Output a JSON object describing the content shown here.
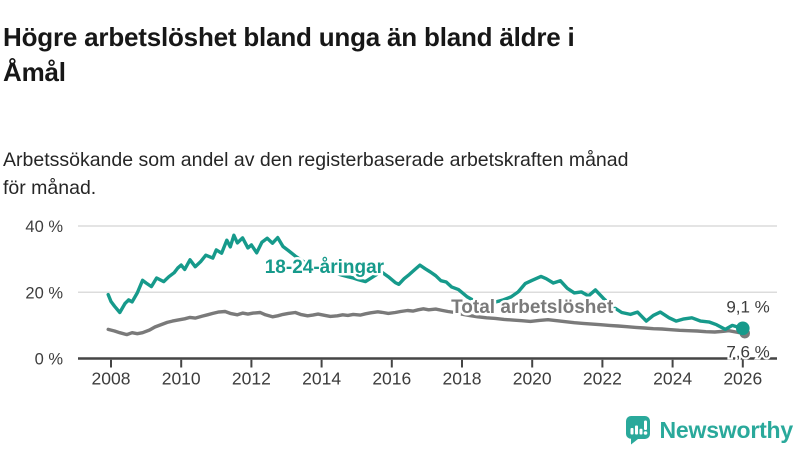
{
  "header": {
    "title": "Högre arbetslöshet bland unga än bland äldre i\nÅmål",
    "subtitle": "Arbetssökande som andel av den registerbaserade arbetskraften månad\nför månad."
  },
  "chart_data": {
    "type": "line",
    "title": "Högre arbetslöshet bland unga än bland äldre i Åmål",
    "subtitle": "Arbetssökande som andel av den registerbaserade arbetskraften månad för månad.",
    "grid": "horizontal",
    "grid_color": "#dcdcdc",
    "axis_color": "#454545",
    "tick_label_color": "#3d3d3d",
    "x_axis": {
      "ticks": [
        2008,
        2010,
        2012,
        2014,
        2016,
        2018,
        2020,
        2022,
        2024,
        2026
      ],
      "range": [
        2007.75,
        2026.95
      ]
    },
    "y_axis": {
      "ticks": [
        {
          "value": 0,
          "label": "0 %"
        },
        {
          "value": 20,
          "label": "20 %"
        },
        {
          "value": 40,
          "label": "40 %"
        }
      ],
      "range": [
        0,
        42
      ]
    },
    "series": [
      {
        "name": "18-24-åringar",
        "color": "#169a8b",
        "end_label": "9,1 %",
        "end_value": 9.1,
        "label_anchor": {
          "x": 2014.08,
          "y": 25.8
        },
        "points": [
          [
            2007.92,
            19.3
          ],
          [
            2008.0,
            17.2
          ],
          [
            2008.1,
            15.8
          ],
          [
            2008.25,
            13.9
          ],
          [
            2008.4,
            16.6
          ],
          [
            2008.5,
            17.7
          ],
          [
            2008.6,
            17.1
          ],
          [
            2008.75,
            19.8
          ],
          [
            2008.9,
            23.6
          ],
          [
            2009.0,
            22.8
          ],
          [
            2009.15,
            21.7
          ],
          [
            2009.3,
            24.3
          ],
          [
            2009.5,
            23.2
          ],
          [
            2009.65,
            24.7
          ],
          [
            2009.8,
            25.9
          ],
          [
            2009.9,
            27.3
          ],
          [
            2010.0,
            28.2
          ],
          [
            2010.1,
            26.9
          ],
          [
            2010.25,
            29.8
          ],
          [
            2010.4,
            27.7
          ],
          [
            2010.55,
            29.2
          ],
          [
            2010.7,
            31.2
          ],
          [
            2010.9,
            30.3
          ],
          [
            2011.0,
            32.8
          ],
          [
            2011.15,
            31.8
          ],
          [
            2011.3,
            35.7
          ],
          [
            2011.4,
            33.7
          ],
          [
            2011.5,
            37.2
          ],
          [
            2011.6,
            34.9
          ],
          [
            2011.75,
            36.4
          ],
          [
            2011.9,
            33.4
          ],
          [
            2012.0,
            34.3
          ],
          [
            2012.15,
            31.9
          ],
          [
            2012.3,
            35.1
          ],
          [
            2012.45,
            36.3
          ],
          [
            2012.6,
            34.8
          ],
          [
            2012.75,
            36.5
          ],
          [
            2012.9,
            33.8
          ],
          [
            2013.05,
            32.6
          ],
          [
            2013.25,
            30.9
          ],
          [
            2013.45,
            29.5
          ],
          [
            2013.6,
            28.4
          ],
          [
            2013.75,
            27.5
          ],
          [
            2013.9,
            26.9
          ],
          [
            2014.05,
            27.3
          ],
          [
            2014.25,
            26.4
          ],
          [
            2014.45,
            25.6
          ],
          [
            2014.6,
            25.1
          ],
          [
            2014.75,
            24.7
          ],
          [
            2014.9,
            24.3
          ],
          [
            2015.05,
            23.8
          ],
          [
            2015.25,
            23.2
          ],
          [
            2015.5,
            24.9
          ],
          [
            2015.7,
            26.2
          ],
          [
            2015.9,
            24.7
          ],
          [
            2016.1,
            22.9
          ],
          [
            2016.2,
            22.4
          ],
          [
            2016.35,
            24.1
          ],
          [
            2016.5,
            25.4
          ],
          [
            2016.65,
            26.8
          ],
          [
            2016.8,
            28.2
          ],
          [
            2016.95,
            27.1
          ],
          [
            2017.1,
            26.1
          ],
          [
            2017.25,
            25.0
          ],
          [
            2017.4,
            23.5
          ],
          [
            2017.55,
            23.1
          ],
          [
            2017.7,
            21.6
          ],
          [
            2017.9,
            20.8
          ],
          [
            2018.15,
            18.6
          ],
          [
            2018.4,
            17.1
          ],
          [
            2018.65,
            16.6
          ],
          [
            2018.9,
            16.9
          ],
          [
            2019.15,
            17.6
          ],
          [
            2019.4,
            18.6
          ],
          [
            2019.6,
            20.1
          ],
          [
            2019.8,
            22.6
          ],
          [
            2020.0,
            23.6
          ],
          [
            2020.25,
            24.8
          ],
          [
            2020.4,
            24.1
          ],
          [
            2020.6,
            22.8
          ],
          [
            2020.8,
            23.5
          ],
          [
            2021.0,
            21.2
          ],
          [
            2021.2,
            19.8
          ],
          [
            2021.4,
            20.1
          ],
          [
            2021.6,
            18.9
          ],
          [
            2021.8,
            20.7
          ],
          [
            2022.05,
            17.9
          ],
          [
            2022.3,
            15.6
          ],
          [
            2022.55,
            13.9
          ],
          [
            2022.8,
            13.3
          ],
          [
            2023.0,
            14.0
          ],
          [
            2023.25,
            11.3
          ],
          [
            2023.45,
            13.0
          ],
          [
            2023.65,
            14.0
          ],
          [
            2023.9,
            12.3
          ],
          [
            2024.1,
            11.3
          ],
          [
            2024.3,
            11.9
          ],
          [
            2024.55,
            12.3
          ],
          [
            2024.8,
            11.3
          ],
          [
            2025.05,
            11.0
          ],
          [
            2025.25,
            10.2
          ],
          [
            2025.5,
            8.8
          ],
          [
            2025.7,
            10.0
          ],
          [
            2025.85,
            9.5
          ],
          [
            2026.0,
            9.1
          ]
        ]
      },
      {
        "name": "Total arbetslöshet",
        "color": "#7a7a7a",
        "end_label": "7,6 %",
        "end_value": 7.6,
        "label_anchor": {
          "x": 2020.0,
          "y": 13.7
        },
        "points": [
          [
            2007.92,
            8.8
          ],
          [
            2008.1,
            8.3
          ],
          [
            2008.25,
            7.8
          ],
          [
            2008.45,
            7.2
          ],
          [
            2008.6,
            7.8
          ],
          [
            2008.75,
            7.5
          ],
          [
            2008.9,
            7.8
          ],
          [
            2009.1,
            8.6
          ],
          [
            2009.25,
            9.5
          ],
          [
            2009.45,
            10.3
          ],
          [
            2009.6,
            10.9
          ],
          [
            2009.75,
            11.3
          ],
          [
            2009.9,
            11.6
          ],
          [
            2010.1,
            12.0
          ],
          [
            2010.25,
            12.4
          ],
          [
            2010.4,
            12.2
          ],
          [
            2010.6,
            12.8
          ],
          [
            2010.75,
            13.2
          ],
          [
            2010.9,
            13.6
          ],
          [
            2011.05,
            14.0
          ],
          [
            2011.25,
            14.2
          ],
          [
            2011.4,
            13.6
          ],
          [
            2011.6,
            13.2
          ],
          [
            2011.75,
            13.7
          ],
          [
            2011.9,
            13.4
          ],
          [
            2012.05,
            13.7
          ],
          [
            2012.25,
            13.9
          ],
          [
            2012.4,
            13.2
          ],
          [
            2012.6,
            12.6
          ],
          [
            2012.75,
            12.9
          ],
          [
            2012.9,
            13.3
          ],
          [
            2013.05,
            13.6
          ],
          [
            2013.25,
            13.9
          ],
          [
            2013.4,
            13.3
          ],
          [
            2013.6,
            12.9
          ],
          [
            2013.75,
            13.1
          ],
          [
            2013.9,
            13.4
          ],
          [
            2014.1,
            13.0
          ],
          [
            2014.25,
            12.7
          ],
          [
            2014.45,
            12.9
          ],
          [
            2014.6,
            13.2
          ],
          [
            2014.75,
            13.0
          ],
          [
            2014.9,
            13.3
          ],
          [
            2015.1,
            13.1
          ],
          [
            2015.25,
            13.5
          ],
          [
            2015.4,
            13.8
          ],
          [
            2015.6,
            14.1
          ],
          [
            2015.75,
            13.9
          ],
          [
            2015.9,
            13.6
          ],
          [
            2016.1,
            13.9
          ],
          [
            2016.25,
            14.2
          ],
          [
            2016.45,
            14.5
          ],
          [
            2016.6,
            14.3
          ],
          [
            2016.75,
            14.7
          ],
          [
            2016.9,
            15.0
          ],
          [
            2017.05,
            14.7
          ],
          [
            2017.25,
            14.9
          ],
          [
            2017.45,
            14.5
          ],
          [
            2017.6,
            14.2
          ],
          [
            2017.8,
            13.9
          ],
          [
            2017.95,
            13.5
          ],
          [
            2018.2,
            13.0
          ],
          [
            2018.45,
            12.6
          ],
          [
            2018.7,
            12.3
          ],
          [
            2018.95,
            12.1
          ],
          [
            2019.2,
            11.8
          ],
          [
            2019.45,
            11.6
          ],
          [
            2019.7,
            11.4
          ],
          [
            2019.95,
            11.2
          ],
          [
            2020.2,
            11.5
          ],
          [
            2020.45,
            11.7
          ],
          [
            2020.7,
            11.4
          ],
          [
            2020.95,
            11.1
          ],
          [
            2021.2,
            10.8
          ],
          [
            2021.45,
            10.6
          ],
          [
            2021.7,
            10.4
          ],
          [
            2021.95,
            10.2
          ],
          [
            2022.2,
            10.0
          ],
          [
            2022.45,
            9.8
          ],
          [
            2022.7,
            9.6
          ],
          [
            2022.95,
            9.4
          ],
          [
            2023.2,
            9.2
          ],
          [
            2023.45,
            9.0
          ],
          [
            2023.7,
            8.9
          ],
          [
            2023.95,
            8.7
          ],
          [
            2024.2,
            8.5
          ],
          [
            2024.45,
            8.4
          ],
          [
            2024.7,
            8.3
          ],
          [
            2024.95,
            8.1
          ],
          [
            2025.2,
            8.0
          ],
          [
            2025.45,
            8.2
          ],
          [
            2025.6,
            8.4
          ],
          [
            2025.8,
            8.0
          ],
          [
            2026.0,
            7.6
          ]
        ]
      }
    ]
  },
  "footer": {
    "brand": "Newsworthy",
    "brand_color": "#2aa99b",
    "logo_icon": "bar-chart-pin-icon"
  }
}
